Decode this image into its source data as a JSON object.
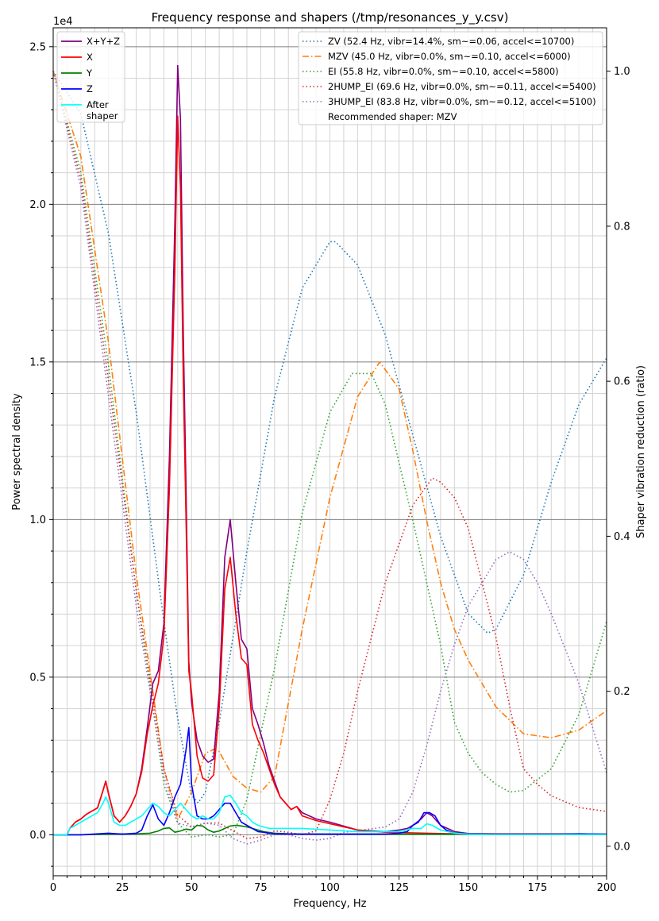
{
  "chart_data": {
    "type": "line",
    "title": "Frequency response and shapers (/tmp/resonances_y_y.csv)",
    "xlabel": "Frequency, Hz",
    "ylabel_left": "Power spectral density",
    "ylabel_right": "Shaper vibration reduction (ratio)",
    "y_left_offset_label": "1e4",
    "xlim": [
      0,
      200
    ],
    "ylim_left": [
      -0.13,
      2.56
    ],
    "ylim_right": [
      -0.038,
      1.056
    ],
    "x_ticks": [
      0,
      25,
      50,
      75,
      100,
      125,
      150,
      175,
      200
    ],
    "x_tick_labels": [
      "0",
      "25",
      "50",
      "75",
      "100",
      "125",
      "150",
      "175",
      "200"
    ],
    "y_left_ticks": [
      0,
      0.5,
      1.0,
      1.5,
      2.0,
      2.5
    ],
    "y_left_tick_labels": [
      "0.0",
      "0.5",
      "1.0",
      "1.5",
      "2.0",
      "2.5"
    ],
    "y_right_ticks": [
      0,
      0.2,
      0.4,
      0.6,
      0.8,
      1.0
    ],
    "y_right_tick_labels": [
      "0.0",
      "0.2",
      "0.4",
      "0.6",
      "0.8",
      "1.0"
    ],
    "grid": true,
    "legend_left": {
      "placement": "top-left",
      "entries": [
        {
          "label": "X+Y+Z",
          "color": "#800080"
        },
        {
          "label": "X",
          "color": "#ff0000"
        },
        {
          "label": "Y",
          "color": "#008000"
        },
        {
          "label": "Z",
          "color": "#0000ff"
        },
        {
          "label": "After\nshaper",
          "color": "#00ffff"
        }
      ]
    },
    "legend_right": {
      "placement": "top-right",
      "entries": [
        {
          "label": "ZV (52.4 Hz, vibr=14.4%, sm~=0.06, accel<=10700)",
          "color": "#1f77b4",
          "style": "dotted"
        },
        {
          "label": "MZV (45.0 Hz, vibr=0.0%, sm~=0.10, accel<=6000)",
          "color": "#ff7f0e",
          "style": "dashdot"
        },
        {
          "label": "EI (55.8 Hz, vibr=0.0%, sm~=0.10, accel<=5800)",
          "color": "#2ca02c",
          "style": "dotted"
        },
        {
          "label": "2HUMP_EI (69.6 Hz, vibr=0.0%, sm~=0.11, accel<=5400)",
          "color": "#d62728",
          "style": "dotted"
        },
        {
          "label": "3HUMP_EI (83.8 Hz, vibr=0.0%, sm~=0.12, accel<=5100)",
          "color": "#9467bd",
          "style": "dotted"
        },
        {
          "label": "Recommended shaper: MZV",
          "color": null,
          "style": "none"
        }
      ]
    },
    "series_left": [
      {
        "name": "X+Y+Z",
        "color": "#800080",
        "width": 1.6,
        "x": [
          0,
          5,
          6,
          8,
          10,
          12,
          14,
          16,
          18,
          19,
          20,
          22,
          24,
          26,
          28,
          30,
          32,
          34,
          36,
          38,
          40,
          42,
          44,
          45,
          46,
          47,
          48,
          49,
          50,
          52,
          54,
          56,
          58,
          60,
          62,
          64,
          66,
          68,
          70,
          72,
          74,
          76,
          78,
          80,
          82,
          84,
          86,
          88,
          90,
          95,
          100,
          110,
          120,
          125,
          128,
          130,
          133,
          135,
          137,
          140,
          145,
          150,
          160,
          170,
          180,
          190,
          200
        ],
        "y": [
          0,
          0,
          0.02,
          0.04,
          0.05,
          0.065,
          0.075,
          0.085,
          0.14,
          0.17,
          0.13,
          0.06,
          0.04,
          0.06,
          0.09,
          0.13,
          0.21,
          0.34,
          0.48,
          0.52,
          0.67,
          1.2,
          1.95,
          2.44,
          2.27,
          1.6,
          1.1,
          0.55,
          0.42,
          0.3,
          0.25,
          0.23,
          0.24,
          0.45,
          0.88,
          1.0,
          0.8,
          0.62,
          0.59,
          0.4,
          0.35,
          0.29,
          0.22,
          0.17,
          0.12,
          0.1,
          0.08,
          0.09,
          0.07,
          0.05,
          0.04,
          0.015,
          0.01,
          0.015,
          0.02,
          0.03,
          0.05,
          0.07,
          0.06,
          0.03,
          0.01,
          0.004,
          0.003,
          0.003,
          0.003,
          0.003,
          0.002
        ]
      },
      {
        "name": "X",
        "color": "#ff0000",
        "width": 1.6,
        "x": [
          0,
          5,
          6,
          8,
          10,
          12,
          14,
          16,
          18,
          19,
          20,
          22,
          24,
          26,
          28,
          30,
          32,
          34,
          36,
          38,
          40,
          42,
          44,
          45,
          46,
          47,
          48,
          49,
          50,
          52,
          54,
          56,
          58,
          60,
          62,
          64,
          66,
          68,
          70,
          72,
          74,
          76,
          78,
          80,
          82,
          84,
          86,
          88,
          90,
          95,
          100,
          110,
          120,
          130,
          140,
          150,
          160,
          170,
          180,
          190,
          200
        ],
        "y": [
          0,
          0,
          0.02,
          0.04,
          0.05,
          0.065,
          0.075,
          0.085,
          0.14,
          0.17,
          0.13,
          0.06,
          0.04,
          0.06,
          0.09,
          0.13,
          0.2,
          0.32,
          0.41,
          0.48,
          0.63,
          1.1,
          1.8,
          2.28,
          2.05,
          1.45,
          1.0,
          0.52,
          0.45,
          0.25,
          0.18,
          0.17,
          0.19,
          0.4,
          0.78,
          0.88,
          0.7,
          0.56,
          0.54,
          0.35,
          0.3,
          0.26,
          0.21,
          0.16,
          0.12,
          0.1,
          0.08,
          0.09,
          0.06,
          0.045,
          0.035,
          0.015,
          0.008,
          0.006,
          0.004,
          0.002,
          0.001,
          0.001,
          0.001,
          0.001,
          0.001
        ]
      },
      {
        "name": "Y",
        "color": "#008000",
        "width": 1.6,
        "x": [
          0,
          10,
          20,
          30,
          35,
          38,
          40,
          42,
          44,
          46,
          48,
          50,
          52,
          54,
          56,
          58,
          60,
          62,
          64,
          66,
          68,
          70,
          72,
          74,
          76,
          80,
          85,
          90,
          100,
          120,
          140,
          160,
          180,
          200
        ],
        "y": [
          0,
          0,
          0.002,
          0.003,
          0.005,
          0.012,
          0.02,
          0.022,
          0.008,
          0.012,
          0.018,
          0.015,
          0.03,
          0.028,
          0.015,
          0.008,
          0.012,
          0.02,
          0.028,
          0.03,
          0.028,
          0.025,
          0.02,
          0.015,
          0.01,
          0.005,
          0.003,
          0.002,
          0.002,
          0.002,
          0.002,
          0.001,
          0.001,
          0.001
        ]
      },
      {
        "name": "Z",
        "color": "#0000ff",
        "width": 1.6,
        "x": [
          0,
          10,
          20,
          25,
          30,
          32,
          34,
          36,
          38,
          40,
          42,
          44,
          46,
          48,
          49,
          50,
          52,
          54,
          56,
          58,
          60,
          62,
          64,
          66,
          68,
          70,
          72,
          74,
          76,
          78,
          80,
          90,
          100,
          110,
          120,
          125,
          128,
          130,
          132,
          134,
          136,
          138,
          140,
          142,
          145,
          150,
          160,
          180,
          190,
          200
        ],
        "y": [
          0,
          0,
          0.005,
          0.002,
          0.005,
          0.015,
          0.06,
          0.095,
          0.05,
          0.03,
          0.07,
          0.12,
          0.16,
          0.27,
          0.34,
          0.16,
          0.06,
          0.05,
          0.05,
          0.06,
          0.08,
          0.1,
          0.1,
          0.07,
          0.04,
          0.03,
          0.02,
          0.01,
          0.008,
          0.005,
          0.003,
          0.002,
          0.002,
          0.002,
          0.002,
          0.005,
          0.01,
          0.03,
          0.04,
          0.07,
          0.07,
          0.06,
          0.03,
          0.015,
          0.005,
          0.003,
          0.001,
          0.001,
          0.003,
          0.002
        ]
      },
      {
        "name": "After\nshaper",
        "color": "#00ffff",
        "width": 1.6,
        "x": [
          0,
          5,
          6,
          8,
          10,
          12,
          14,
          16,
          18,
          19,
          20,
          22,
          24,
          26,
          28,
          30,
          32,
          34,
          36,
          38,
          40,
          42,
          44,
          46,
          48,
          50,
          52,
          54,
          56,
          58,
          60,
          62,
          64,
          66,
          68,
          70,
          72,
          74,
          76,
          78,
          80,
          85,
          90,
          100,
          110,
          120,
          125,
          130,
          133,
          135,
          137,
          140,
          145,
          150,
          160,
          180,
          200
        ],
        "y": [
          0,
          0,
          0.02,
          0.03,
          0.04,
          0.05,
          0.06,
          0.07,
          0.1,
          0.12,
          0.1,
          0.04,
          0.03,
          0.03,
          0.04,
          0.05,
          0.06,
          0.08,
          0.1,
          0.09,
          0.07,
          0.06,
          0.08,
          0.1,
          0.08,
          0.06,
          0.05,
          0.06,
          0.05,
          0.05,
          0.07,
          0.12,
          0.125,
          0.1,
          0.07,
          0.06,
          0.04,
          0.03,
          0.025,
          0.02,
          0.02,
          0.02,
          0.02,
          0.015,
          0.01,
          0.01,
          0.01,
          0.02,
          0.02,
          0.035,
          0.03,
          0.015,
          0.005,
          0.002,
          0.001,
          0.001,
          0.001
        ]
      }
    ],
    "series_right": [
      {
        "name": "ZV (52.4 Hz, vibr=14.4%, sm~=0.06, accel<=10700)",
        "color": "#1f77b4",
        "style": "dotted",
        "x": [
          0,
          10,
          20,
          30,
          40,
          45,
          50,
          52.4,
          55,
          60,
          70,
          80,
          90,
          100,
          102,
          110,
          120,
          130,
          140,
          150,
          157,
          160,
          170,
          180,
          190,
          200
        ],
        "y": [
          1.0,
          0.945,
          0.79,
          0.56,
          0.29,
          0.165,
          0.066,
          0.056,
          0.07,
          0.16,
          0.38,
          0.58,
          0.72,
          0.78,
          0.78,
          0.75,
          0.66,
          0.53,
          0.4,
          0.3,
          0.275,
          0.28,
          0.35,
          0.47,
          0.57,
          0.63
        ]
      },
      {
        "name": "MZV (45.0 Hz, vibr=0.0%, sm~=0.10, accel<=6000)",
        "color": "#ff7f0e",
        "style": "dashdot",
        "x": [
          0,
          10,
          20,
          30,
          40,
          45,
          50,
          55,
          58,
          60,
          65,
          70,
          75,
          80,
          90,
          100,
          110,
          118,
          125,
          130,
          135,
          140,
          145,
          150,
          160,
          170,
          180,
          190,
          200
        ],
        "y": [
          1.0,
          0.89,
          0.65,
          0.35,
          0.1,
          0.035,
          0.07,
          0.12,
          0.125,
          0.122,
          0.09,
          0.075,
          0.07,
          0.09,
          0.28,
          0.45,
          0.58,
          0.625,
          0.59,
          0.51,
          0.42,
          0.34,
          0.28,
          0.24,
          0.18,
          0.145,
          0.14,
          0.15,
          0.175
        ]
      },
      {
        "name": "EI (55.8 Hz, vibr=0.0%, sm~=0.10, accel<=5800)",
        "color": "#2ca02c",
        "style": "dotted",
        "x": [
          0,
          10,
          20,
          30,
          40,
          45,
          50,
          55.8,
          60,
          65,
          70,
          80,
          90,
          100,
          108,
          115,
          120,
          130,
          140,
          145,
          150,
          155,
          160,
          165,
          170,
          180,
          190,
          200
        ],
        "y": [
          1.0,
          0.87,
          0.62,
          0.33,
          0.08,
          0.03,
          0.012,
          0.015,
          0.012,
          0.015,
          0.06,
          0.23,
          0.43,
          0.56,
          0.61,
          0.61,
          0.57,
          0.42,
          0.26,
          0.16,
          0.12,
          0.095,
          0.08,
          0.07,
          0.072,
          0.1,
          0.17,
          0.29
        ]
      },
      {
        "name": "2HUMP_EI (69.6 Hz, vibr=0.0%, sm~=0.11, accel<=5400)",
        "color": "#d62728",
        "style": "dotted",
        "x": [
          0,
          10,
          20,
          30,
          40,
          45,
          50,
          55,
          60,
          65,
          70,
          75,
          80,
          85,
          90,
          95,
          100,
          105,
          110,
          120,
          130,
          137,
          140,
          145,
          150,
          160,
          165,
          170,
          175,
          180,
          190,
          200
        ],
        "y": [
          1.0,
          0.86,
          0.6,
          0.33,
          0.1,
          0.04,
          0.025,
          0.03,
          0.03,
          0.02,
          0.01,
          0.012,
          0.02,
          0.018,
          0.015,
          0.02,
          0.06,
          0.12,
          0.2,
          0.34,
          0.44,
          0.475,
          0.47,
          0.45,
          0.41,
          0.27,
          0.18,
          0.1,
          0.08,
          0.065,
          0.05,
          0.045
        ]
      },
      {
        "name": "3HUMP_EI (83.8 Hz, vibr=0.0%, sm~=0.12, accel<=5100)",
        "color": "#9467bd",
        "style": "dotted",
        "x": [
          0,
          10,
          20,
          30,
          40,
          45,
          50,
          55,
          60,
          65,
          70,
          75,
          80,
          85,
          90,
          95,
          100,
          105,
          110,
          120,
          125,
          130,
          135,
          140,
          145,
          150,
          160,
          165,
          170,
          175,
          180,
          190,
          200
        ],
        "y": [
          1.0,
          0.85,
          0.58,
          0.31,
          0.09,
          0.03,
          0.025,
          0.03,
          0.027,
          0.01,
          0.003,
          0.008,
          0.015,
          0.015,
          0.01,
          0.008,
          0.01,
          0.018,
          0.02,
          0.025,
          0.035,
          0.07,
          0.13,
          0.2,
          0.26,
          0.31,
          0.37,
          0.38,
          0.37,
          0.34,
          0.3,
          0.21,
          0.095
        ]
      }
    ]
  }
}
